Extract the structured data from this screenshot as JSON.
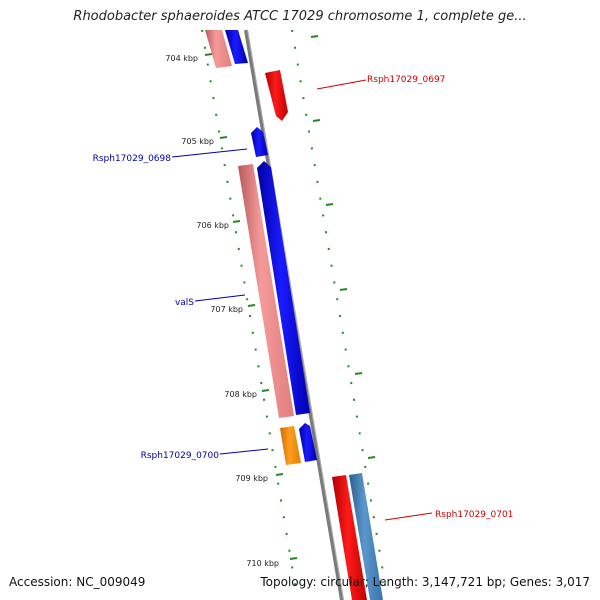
{
  "title": "Rhodobacter sphaeroides ATCC 17029 chromosome 1, complete ge...",
  "footer": {
    "accession": "Accession: NC_009049",
    "topology": "Topology: circular; Length: 3,147,721 bp; Genes: 3,017"
  },
  "scale_labels": [
    "704 kbp",
    "705 kbp",
    "706 kbp",
    "707 kbp",
    "708 kbp",
    "709 kbp",
    "710 kbp"
  ],
  "gene_labels": {
    "rsph0697": "Rsph17029_0697",
    "rsph0698": "Rsph17029_0698",
    "vals": "valS",
    "rsph0700": "Rsph17029_0700",
    "rsph0701": "Rsph17029_0701"
  },
  "colors": {
    "forward_label": "#cc0000",
    "reverse_label": "#0000aa",
    "forward_cds": "#ff0000",
    "reverse_cds": "#0000ff",
    "reverse_gene": "#f08080",
    "forward_gene": "#4682b4",
    "other_gene": "#ff8c00",
    "backbone": "#888888",
    "ticks": "#228b22"
  }
}
